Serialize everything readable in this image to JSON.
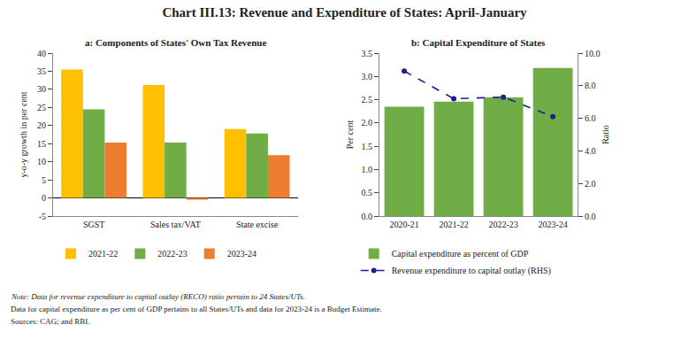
{
  "title": "Chart III.13: Revenue and Expenditure of States: April-January",
  "annotations": [
    "Note: Data for revenue expenditure to capital outlay (RECO) ratio pertain to 24 States/UTs.",
    "Data for capital expenditure as per cent of GDP pertains to all States/UTs and data for 2023-24 is a Budget Estimate.",
    "Sources: CAG; and RBI."
  ],
  "chart_data": [
    {
      "type": "bar",
      "title": "a: Components of States' Own Tax Revenue",
      "ylabel": "y-o-y growth in per cent",
      "categories": [
        "SGST",
        "Sales tax/VAT",
        "State excise"
      ],
      "series": [
        {
          "name": "2021-22",
          "color": "#FFC000",
          "values": [
            35.5,
            31.2,
            19.0
          ]
        },
        {
          "name": "2022-23",
          "color": "#70AD47",
          "values": [
            24.5,
            15.3,
            17.8
          ]
        },
        {
          "name": "2023-24",
          "color": "#ED7D31",
          "values": [
            15.3,
            -0.5,
            11.8
          ]
        }
      ],
      "ylim": [
        -5,
        40
      ],
      "yticks": [
        -5,
        0,
        5,
        10,
        15,
        20,
        25,
        30,
        35,
        40
      ],
      "grid": false,
      "legend": "bottom"
    },
    {
      "type": "bar",
      "title": "b: Capital Expenditure of States",
      "ylabel": "Per cent",
      "y2label": "Ratio",
      "categories": [
        "2020-21",
        "2021-22",
        "2022-23",
        "2023-24"
      ],
      "series": [
        {
          "name": "Capital expenditure as percent of GDP",
          "type": "bar",
          "color": "#70AD47",
          "values": [
            2.35,
            2.46,
            2.55,
            3.18
          ]
        },
        {
          "name": "Revenue expenditure to capital outlay (RHS)",
          "type": "line",
          "axis": "y2",
          "color": "#1F1F8B",
          "line_style": "dashed",
          "marker": "circle",
          "values": [
            8.9,
            7.2,
            7.3,
            6.1
          ]
        }
      ],
      "ylim": [
        0,
        3.5
      ],
      "yticks": [
        {
          "value": 0,
          "label": "0.0"
        },
        0.5,
        {
          "value": 1,
          "label": "1.0"
        },
        1.5,
        {
          "value": 2,
          "label": "2.0"
        },
        2.5,
        {
          "value": 3,
          "label": "3.0"
        },
        3.5
      ],
      "y2lim": [
        0,
        10
      ],
      "y2ticks": [
        {
          "value": 0,
          "label": "0.0"
        },
        {
          "value": 2,
          "label": "2.0"
        },
        {
          "value": 4,
          "label": "4.0"
        },
        {
          "value": 6,
          "label": "6.0"
        },
        {
          "value": 8,
          "label": "8.0"
        },
        {
          "value": 10,
          "label": "10.0"
        }
      ],
      "grid": false,
      "legend": "bottom"
    }
  ]
}
